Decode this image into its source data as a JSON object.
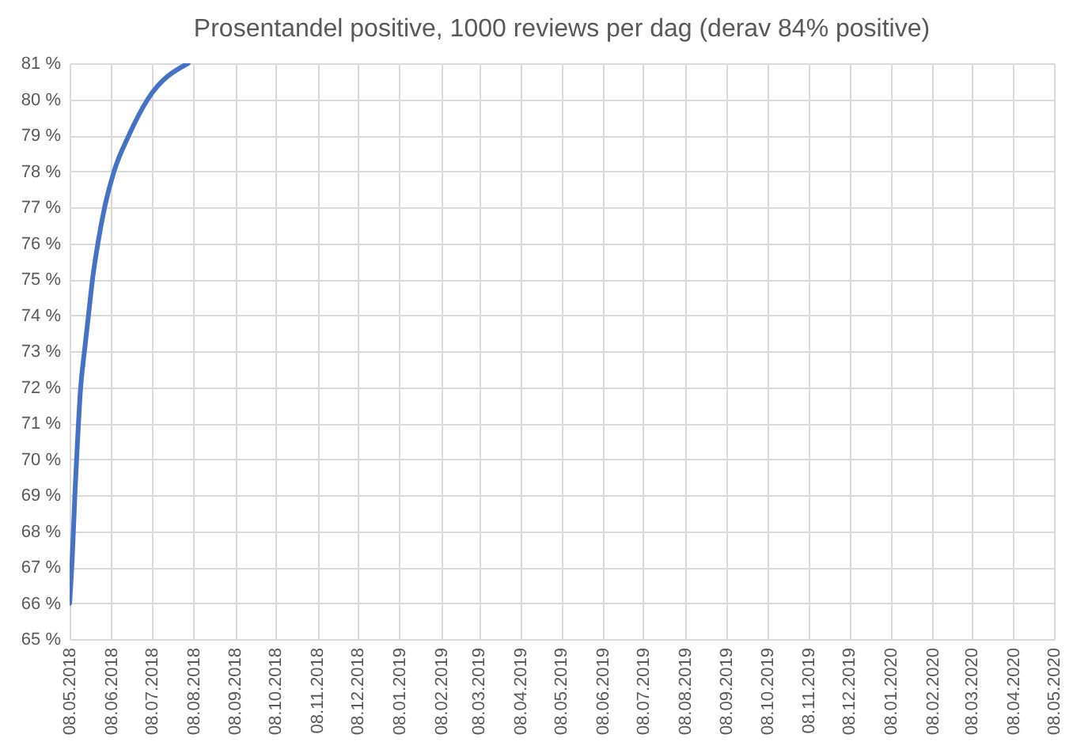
{
  "chart_data": {
    "type": "line",
    "title": "Prosentandel positive, 1000 reviews per dag (derav 84% positive)",
    "x": [
      "2018-05-08",
      "2018-05-10",
      "2018-05-12",
      "2018-05-14",
      "2018-05-16",
      "2018-05-19",
      "2018-05-22",
      "2018-05-25",
      "2018-05-29",
      "2018-06-03",
      "2018-06-10",
      "2018-06-21",
      "2018-07-05",
      "2018-08-04"
    ],
    "series": [
      {
        "color": "#4472c4",
        "values": [
          66.0,
          67.3,
          69.1,
          70.6,
          71.9,
          73.0,
          74.0,
          75.0,
          76.0,
          77.0,
          78.0,
          79.0,
          80.0,
          81.0
        ]
      }
    ],
    "xlim": [
      "2018-05-08",
      "2020-05-08"
    ],
    "xticks": [
      {
        "value": "2018-05-08",
        "label": "08.05.2018"
      },
      {
        "value": "2018-06-08",
        "label": "08.06.2018"
      },
      {
        "value": "2018-07-08",
        "label": "08.07.2018"
      },
      {
        "value": "2018-08-08",
        "label": "08.08.2018"
      },
      {
        "value": "2018-09-08",
        "label": "08.09.2018"
      },
      {
        "value": "2018-10-08",
        "label": "08.10.2018"
      },
      {
        "value": "2018-11-08",
        "label": "08.11.2018"
      },
      {
        "value": "2018-12-08",
        "label": "08.12.2018"
      },
      {
        "value": "2019-01-08",
        "label": "08.01.2019"
      },
      {
        "value": "2019-02-08",
        "label": "08.02.2019"
      },
      {
        "value": "2019-03-08",
        "label": "08.03.2019"
      },
      {
        "value": "2019-04-08",
        "label": "08.04.2019"
      },
      {
        "value": "2019-05-08",
        "label": "08.05.2019"
      },
      {
        "value": "2019-06-08",
        "label": "08.06.2019"
      },
      {
        "value": "2019-07-08",
        "label": "08.07.2019"
      },
      {
        "value": "2019-08-08",
        "label": "08.08.2019"
      },
      {
        "value": "2019-09-08",
        "label": "08.09.2019"
      },
      {
        "value": "2019-10-08",
        "label": "08.10.2019"
      },
      {
        "value": "2019-11-08",
        "label": "08.11.2019"
      },
      {
        "value": "2019-12-08",
        "label": "08.12.2019"
      },
      {
        "value": "2020-01-08",
        "label": "08.01.2020"
      },
      {
        "value": "2020-02-08",
        "label": "08.02.2020"
      },
      {
        "value": "2020-03-08",
        "label": "08.03.2020"
      },
      {
        "value": "2020-04-08",
        "label": "08.04.2020"
      },
      {
        "value": "2020-05-08",
        "label": "08.05.2020"
      }
    ],
    "ylim": [
      65,
      81
    ],
    "yticks": [
      {
        "value": 65,
        "label": "65 %"
      },
      {
        "value": 66,
        "label": "66 %"
      },
      {
        "value": 67,
        "label": "67 %"
      },
      {
        "value": 68,
        "label": "68 %"
      },
      {
        "value": 69,
        "label": "69 %"
      },
      {
        "value": 70,
        "label": "70 %"
      },
      {
        "value": 71,
        "label": "71 %"
      },
      {
        "value": 72,
        "label": "72 %"
      },
      {
        "value": 73,
        "label": "73 %"
      },
      {
        "value": 74,
        "label": "74 %"
      },
      {
        "value": 75,
        "label": "75 %"
      },
      {
        "value": 76,
        "label": "76 %"
      },
      {
        "value": 77,
        "label": "77 %"
      },
      {
        "value": 78,
        "label": "78 %"
      },
      {
        "value": 79,
        "label": "79 %"
      },
      {
        "value": 80,
        "label": "80 %"
      },
      {
        "value": 81,
        "label": "81 %"
      }
    ],
    "grid": true
  }
}
